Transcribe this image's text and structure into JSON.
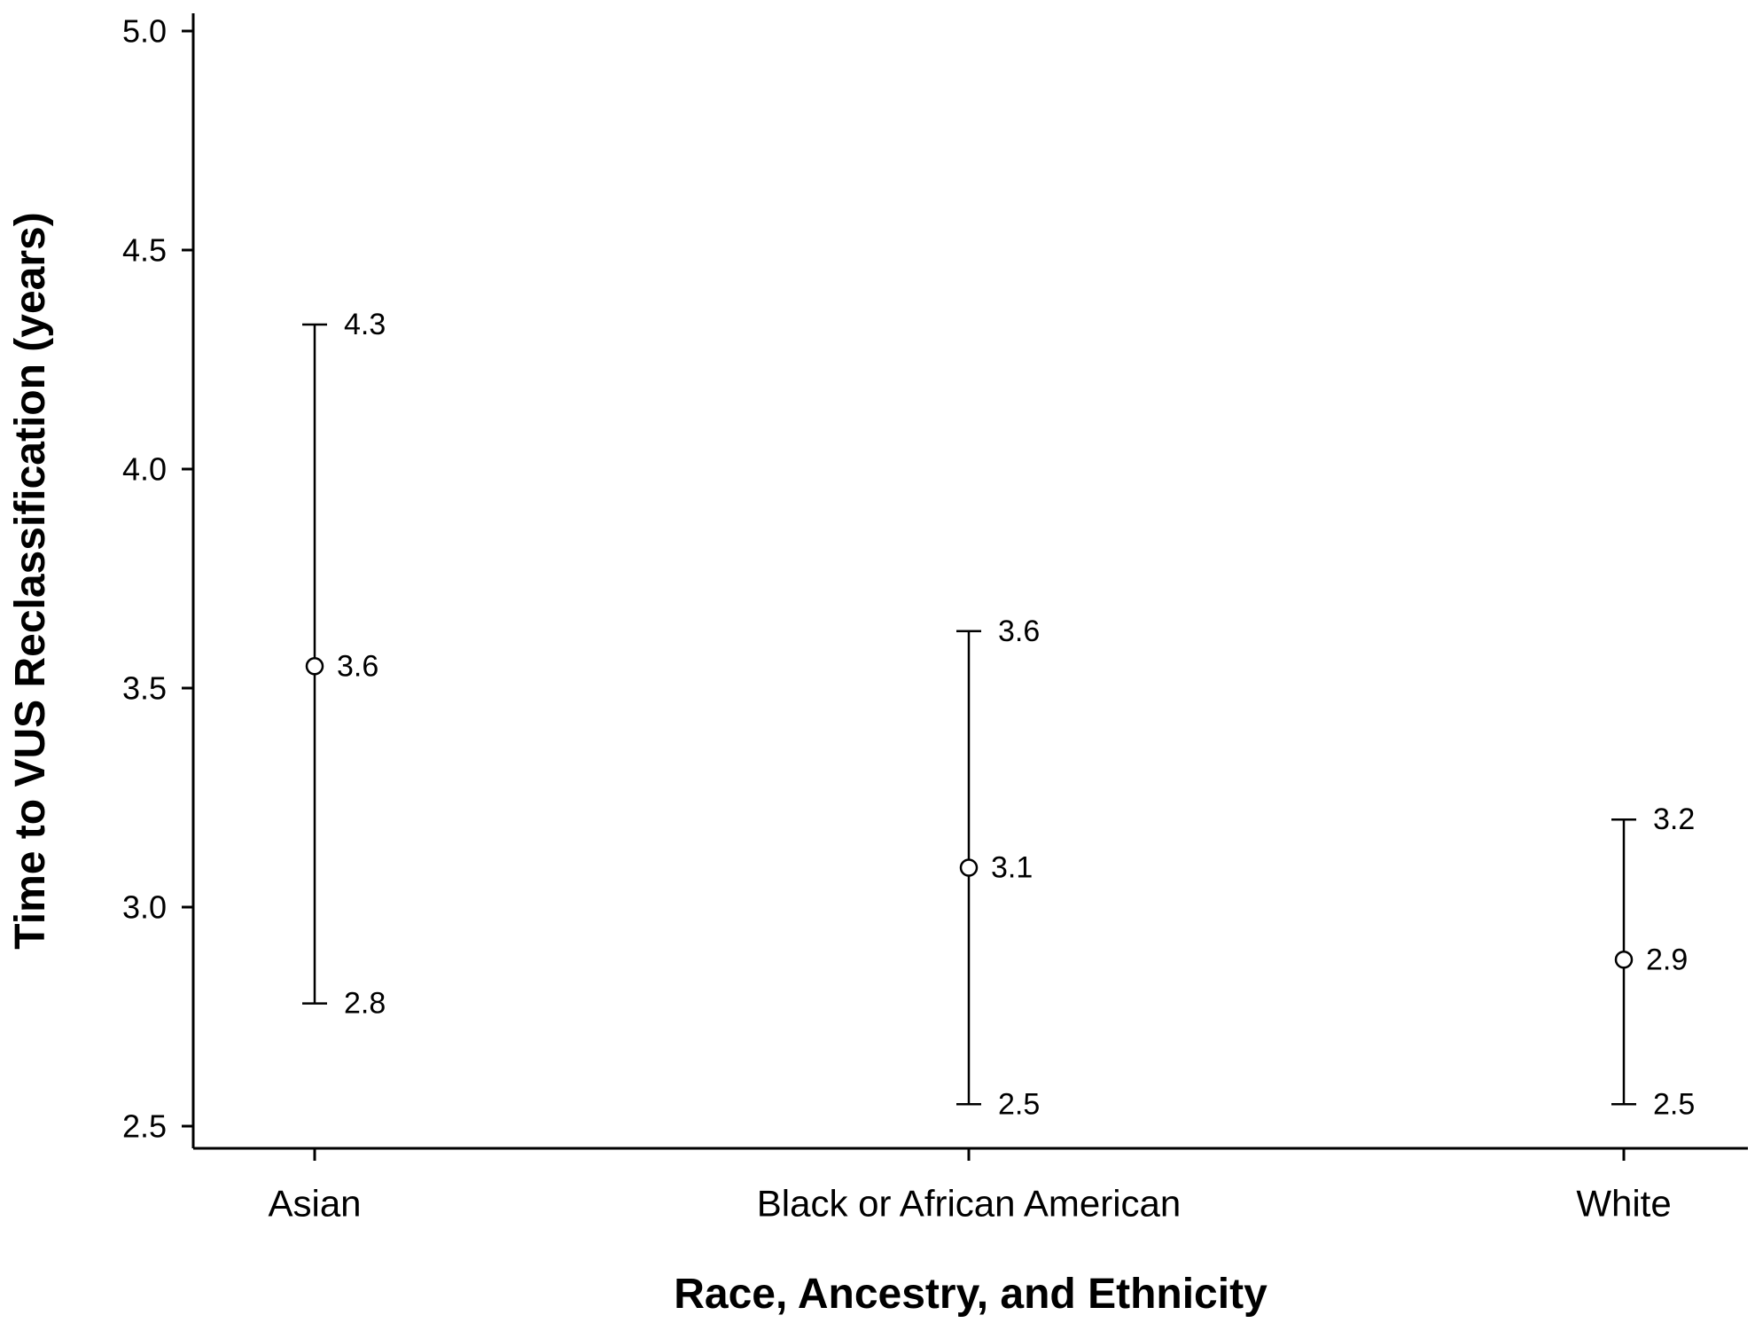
{
  "chart_data": {
    "type": "errorbar",
    "xlabel": "Race, Ancestry, and Ethnicity",
    "ylabel": "Time to VUS Reclassification (years)",
    "ylim": [
      2.45,
      5.05
    ],
    "yticks": [
      2.5,
      3.0,
      3.5,
      4.0,
      4.5,
      5.0
    ],
    "ytick_labels": [
      "2.5",
      "3.0",
      "3.5",
      "4.0",
      "4.5",
      "5.0"
    ],
    "grid": false,
    "legend": "none",
    "categories": [
      "Asian",
      "Black or African American",
      "White"
    ],
    "points": [
      {
        "category": "Asian",
        "estimate": 3.55,
        "lower": 2.78,
        "upper": 4.33,
        "estimate_label": "3.6",
        "lower_label": "2.8",
        "upper_label": "4.3"
      },
      {
        "category": "Black or African American",
        "estimate": 3.09,
        "lower": 2.55,
        "upper": 3.63,
        "estimate_label": "3.1",
        "lower_label": "2.5",
        "upper_label": "3.6"
      },
      {
        "category": "White",
        "estimate": 2.88,
        "lower": 2.55,
        "upper": 3.2,
        "estimate_label": "2.9",
        "lower_label": "2.5",
        "upper_label": "3.2"
      }
    ]
  }
}
